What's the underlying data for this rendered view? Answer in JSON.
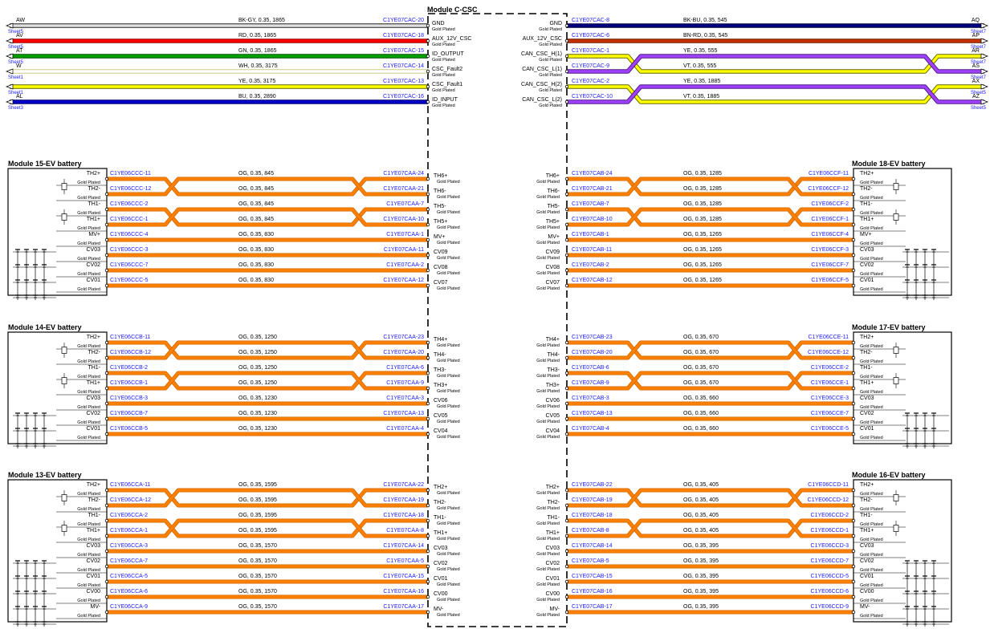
{
  "csc": {
    "title": "Module C-CSC",
    "left": [
      {
        "tag": "AW",
        "sheet": "Sheet5",
        "spec": "BK-GY,  0.35,  1865",
        "conn": "C1YE07CAC-20",
        "pin": "GND",
        "plate": "Gold Plated",
        "color": "#e0e0e0",
        "edge": "#222222"
      },
      {
        "tag": "AV",
        "sheet": "Sheet5",
        "spec": "RD,  0.35,  1865",
        "conn": "C1YE07CAC-18",
        "pin": "AUX_12V_CSC",
        "plate": "Gold Plated",
        "color": "#ff0000",
        "edge": "#990000"
      },
      {
        "tag": "AT",
        "sheet": "Sheet5",
        "spec": "GN,  0.35,  1865",
        "conn": "C1YE07CAC-15",
        "pin": "ID_OUTPUT",
        "plate": "Gold Plated",
        "color": "#00a000",
        "edge": "#005000"
      },
      {
        "tag": "W",
        "sheet": "Sheet1",
        "spec": "WH,  0.35,  3175",
        "conn": "C1YE07CAC-14",
        "pin": "CSC_Fault2",
        "plate": "Gold Plated",
        "color": "#ffffff",
        "edge": "#cccc88"
      },
      {
        "tag": "",
        "sheet": "Sheet1",
        "spec": "YE,  0.35,  3175",
        "conn": "C1YE07CAC-13",
        "pin": "CSC_Fault1",
        "plate": "Gold Plated",
        "color": "#ffff00",
        "edge": "#666600"
      },
      {
        "tag": "AL",
        "sheet": "Sheet3",
        "spec": "BU,  0.35,  2890",
        "conn": "C1YE07CAC-16",
        "pin": "ID_INPUT",
        "plate": "Gold Plated",
        "color": "#0000cc",
        "edge": "#000066"
      }
    ],
    "right": [
      {
        "tag": "AQ",
        "sheet": "Sheet7",
        "spec": "BK-BU,  0.35,  545",
        "conn": "C1YE07CAC-8",
        "pin": "GND",
        "plate": "Gold Plated",
        "color": "#000080",
        "edge": "#000040"
      },
      {
        "tag": "AP",
        "sheet": "Sheet7",
        "spec": "BN-RD,  0.35,  545",
        "conn": "C1YE07CAC-6",
        "pin": "AUX_12V_CSC",
        "plate": "Gold Plated",
        "color": "#c83200",
        "edge": "#6a1a00"
      },
      {
        "tag": "AR",
        "sheet": "Sheet7",
        "spec": "YE,  0.35,  555",
        "conn": "C1YE07CAC-1",
        "pin": "CAN_CSC_H(1)",
        "plate": "Gold Plated",
        "color": "#ffff00",
        "edge": "#666600"
      },
      {
        "tag": "AS",
        "sheet": "Sheet7",
        "spec": "VT,  0.35,  555",
        "conn": "C1YE07CAC-9",
        "pin": "CAN_CSC_L(1)",
        "plate": "Gold Plated",
        "color": "#a040ff",
        "edge": "#502080"
      },
      {
        "tag": "AX",
        "sheet": "Sheet5",
        "spec": "YE,  0.35,  1885",
        "conn": "C1YE07CAC-2",
        "pin": "CAN_CSC_H(2)",
        "plate": "Gold Plated",
        "color": "#ffff00",
        "edge": "#666600"
      },
      {
        "tag": "AZ",
        "sheet": "Sheet5",
        "spec": "VT,  0.35,  1885",
        "conn": "C1YE07CAC-10",
        "pin": "CAN_CSC_L(2)",
        "plate": "Gold Plated",
        "color": "#a040ff",
        "edge": "#502080"
      }
    ]
  },
  "modules": [
    {
      "title": "Module 15-EV battery",
      "side": "left",
      "rows": [
        {
          "m": "TH2+",
          "c": "TH6+",
          "mc": "C1YE06CCC-11",
          "cc": "C1YE07CAA-24",
          "spec": "OG,  0.35,  845",
          "plate": "Gold Plated"
        },
        {
          "m": "TH2-",
          "c": "TH6-",
          "mc": "C1YE06CCC-12",
          "cc": "C1YE07CAA-21",
          "spec": "OG,  0.35,  845",
          "plate": "Gold Plated"
        },
        {
          "m": "TH1-",
          "c": "TH5-",
          "mc": "C1YE06CCC-2",
          "cc": "C1YE07CAA-7",
          "spec": "OG,  0.35,  845",
          "plate": "Gold Plated"
        },
        {
          "m": "TH1+",
          "c": "TH5+",
          "mc": "C1YE06CCC-1",
          "cc": "C1YE07CAA-10",
          "spec": "OG,  0.35,  845",
          "plate": "Gold Plated"
        },
        {
          "m": "MV+",
          "c": "MV+",
          "mc": "C1YE06CCC-4",
          "cc": "C1YE07CAA-1",
          "spec": "OG,  0.35,  830",
          "plate": "Gold Plated"
        },
        {
          "m": "CV03",
          "c": "CV09",
          "mc": "C1YE06CCC-3",
          "cc": "C1YE07CAA-11",
          "spec": "OG,  0.35,  830",
          "plate": "Gold Plated"
        },
        {
          "m": "CV02",
          "c": "CV08",
          "mc": "C1YE06CCC-7",
          "cc": "C1YE07CAA-2",
          "spec": "OG,  0.35,  830",
          "plate": "Gold Plated"
        },
        {
          "m": "CV01",
          "c": "CV07",
          "mc": "C1YE06CCC-5",
          "cc": "C1YE07CAA-12",
          "spec": "OG,  0.35,  830",
          "plate": "Gold Plated"
        }
      ]
    },
    {
      "title": "Module 14-EV battery",
      "side": "left",
      "rows": [
        {
          "m": "TH2+",
          "c": "TH4+",
          "mc": "C1YE06CCB-11",
          "cc": "C1YE07CAA-23",
          "spec": "OG,  0.35,  1250",
          "plate": "Gold Plated"
        },
        {
          "m": "TH2-",
          "c": "TH4-",
          "mc": "C1YE06CCB-12",
          "cc": "C1YE07CAA-20",
          "spec": "OG,  0.35,  1250",
          "plate": "Gold Plated"
        },
        {
          "m": "TH1-",
          "c": "TH3-",
          "mc": "C1YE06CCB-2",
          "cc": "C1YE07CAA-6",
          "spec": "OG,  0.35,  1250",
          "plate": "Gold Plated"
        },
        {
          "m": "TH1+",
          "c": "TH3+",
          "mc": "C1YE06CCB-1",
          "cc": "C1YE07CAA-9",
          "spec": "OG,  0.35,  1250",
          "plate": "Gold Plated"
        },
        {
          "m": "CV03",
          "c": "CV06",
          "mc": "C1YE06CCB-3",
          "cc": "C1YE07CAA-3",
          "spec": "OG,  0.35,  1230",
          "plate": "Gold Plated"
        },
        {
          "m": "CV02",
          "c": "CV05",
          "mc": "C1YE06CCB-7",
          "cc": "C1YE07CAA-13",
          "spec": "OG,  0.35,  1230",
          "plate": "Gold Plated"
        },
        {
          "m": "CV01",
          "c": "CV04",
          "mc": "C1YE06CCB-5",
          "cc": "C1YE07CAA-4",
          "spec": "OG,  0.35,  1230",
          "plate": "Gold Plated"
        }
      ]
    },
    {
      "title": "Module 13-EV battery",
      "side": "left",
      "rows": [
        {
          "m": "TH2+",
          "c": "TH2+",
          "mc": "C1YE06CCA-11",
          "cc": "C1YE07CAA-22",
          "spec": "OG,  0.35,  1595",
          "plate": "Gold Plated"
        },
        {
          "m": "TH2-",
          "c": "TH2-",
          "mc": "C1YE06CCA-12",
          "cc": "C1YE07CAA-19",
          "spec": "OG,  0.35,  1595",
          "plate": "Gold Plated"
        },
        {
          "m": "TH1-",
          "c": "TH1-",
          "mc": "C1YE06CCA-2",
          "cc": "C1YE07CAA-18",
          "spec": "OG,  0.35,  1595",
          "plate": "Gold Plated"
        },
        {
          "m": "TH1+",
          "c": "TH1+",
          "mc": "C1YE06CCA-1",
          "cc": "C1YE07CAA-8",
          "spec": "OG,  0.35,  1595",
          "plate": "Gold Plated"
        },
        {
          "m": "CV03",
          "c": "CV03",
          "mc": "C1YE06CCA-3",
          "cc": "C1YE07CAA-14",
          "spec": "OG,  0.35,  1570",
          "plate": "Gold Plated"
        },
        {
          "m": "CV02",
          "c": "CV02",
          "mc": "C1YE06CCA-7",
          "cc": "C1YE07CAA-5",
          "spec": "OG,  0.35,  1570",
          "plate": "Gold Plated"
        },
        {
          "m": "CV01",
          "c": "CV01",
          "mc": "C1YE06CCA-5",
          "cc": "C1YE07CAA-15",
          "spec": "OG,  0.35,  1570",
          "plate": "Gold Plated"
        },
        {
          "m": "CV00",
          "c": "CV00",
          "mc": "C1YE06CCA-6",
          "cc": "C1YE07CAA-16",
          "spec": "OG,  0.35,  1570",
          "plate": "Gold Plated"
        },
        {
          "m": "MV-",
          "c": "MV-",
          "mc": "C1YE06CCA-9",
          "cc": "C1YE07CAA-17",
          "spec": "OG,  0.35,  1570",
          "plate": "Gold Plated"
        }
      ]
    },
    {
      "title": "Module 18-EV battery",
      "side": "right",
      "rows": [
        {
          "m": "TH2+",
          "c": "TH6+",
          "mc": "C1YE06CCF-11",
          "cc": "C1YE07CAB-24",
          "spec": "OG,  0.35,  1285",
          "plate": "Gold Plated"
        },
        {
          "m": "TH2-",
          "c": "TH6-",
          "mc": "C1YE06CCF-12",
          "cc": "C1YE07CAB-21",
          "spec": "OG,  0.35,  1285",
          "plate": "Gold Plated"
        },
        {
          "m": "TH1-",
          "c": "TH5-",
          "mc": "C1YE06CCF-2",
          "cc": "C1YE07CAB-7",
          "spec": "OG,  0.35,  1285",
          "plate": "Gold Plated"
        },
        {
          "m": "TH1+",
          "c": "TH5+",
          "mc": "C1YE06CCF-1",
          "cc": "C1YE07CAB-10",
          "spec": "OG,  0.35,  1285",
          "plate": "Gold Plated"
        },
        {
          "m": "MV+",
          "c": "MV+",
          "mc": "C1YE06CCF-4",
          "cc": "C1YE07CAB-1",
          "spec": "OG,  0.35,  1265",
          "plate": "Gold Plated"
        },
        {
          "m": "CV03",
          "c": "CV09",
          "mc": "C1YE06CCF-3",
          "cc": "C1YE07CAB-11",
          "spec": "OG,  0.35,  1265",
          "plate": "Gold Plated"
        },
        {
          "m": "CV02",
          "c": "CV08",
          "mc": "C1YE06CCF-7",
          "cc": "C1YE07CAB-2",
          "spec": "OG,  0.35,  1265",
          "plate": "Gold Plated"
        },
        {
          "m": "CV01",
          "c": "CV07",
          "mc": "C1YE06CCF-5",
          "cc": "C1YE07CAB-12",
          "spec": "OG,  0.35,  1265",
          "plate": "Gold Plated"
        }
      ]
    },
    {
      "title": "Module 17-EV battery",
      "side": "right",
      "rows": [
        {
          "m": "TH2+",
          "c": "TH4+",
          "mc": "C1YE06CCE-11",
          "cc": "C1YE07CAB-23",
          "spec": "OG,  0.35,  670",
          "plate": "Gold Plated"
        },
        {
          "m": "TH2-",
          "c": "TH4-",
          "mc": "C1YE06CCE-12",
          "cc": "C1YE07CAB-20",
          "spec": "OG,  0.35,  670",
          "plate": "Gold Plated"
        },
        {
          "m": "TH1-",
          "c": "TH3-",
          "mc": "C1YE06CCE-2",
          "cc": "C1YE07CAB-6",
          "spec": "OG,  0.35,  670",
          "plate": "Gold Plated"
        },
        {
          "m": "TH1+",
          "c": "TH3+",
          "mc": "C1YE06CCE-1",
          "cc": "C1YE07CAB-9",
          "spec": "OG,  0.35,  670",
          "plate": "Gold Plated"
        },
        {
          "m": "CV03",
          "c": "CV06",
          "mc": "C1YE06CCE-3",
          "cc": "C1YE07CAB-3",
          "spec": "OG,  0.35,  660",
          "plate": "Gold Plated"
        },
        {
          "m": "CV02",
          "c": "CV05",
          "mc": "C1YE06CCE-7",
          "cc": "C1YE07CAB-13",
          "spec": "OG,  0.35,  660",
          "plate": "Gold Plated"
        },
        {
          "m": "CV01",
          "c": "CV04",
          "mc": "C1YE06CCE-5",
          "cc": "C1YE07CAB-4",
          "spec": "OG,  0.35,  660",
          "plate": "Gold Plated"
        }
      ]
    },
    {
      "title": "Module 16-EV battery",
      "side": "right",
      "rows": [
        {
          "m": "TH2+",
          "c": "TH2+",
          "mc": "C1YE06CCD-11",
          "cc": "C1YE07CAB-22",
          "spec": "OG,  0.35,  405",
          "plate": "Gold Plated"
        },
        {
          "m": "TH2-",
          "c": "TH2-",
          "mc": "C1YE06CCD-12",
          "cc": "C1YE07CAB-19",
          "spec": "OG,  0.35,  405",
          "plate": "Gold Plated"
        },
        {
          "m": "TH1-",
          "c": "TH1-",
          "mc": "C1YE06CCD-2",
          "cc": "C1YE07CAB-18",
          "spec": "OG,  0.35,  405",
          "plate": "Gold Plated"
        },
        {
          "m": "TH1+",
          "c": "TH1+",
          "mc": "C1YE06CCD-1",
          "cc": "C1YE07CAB-8",
          "spec": "OG,  0.35,  405",
          "plate": "Gold Plated"
        },
        {
          "m": "CV03",
          "c": "CV03",
          "mc": "C1YE06CCD-3",
          "cc": "C1YE07CAB-14",
          "spec": "OG,  0.35,  395",
          "plate": "Gold Plated"
        },
        {
          "m": "CV02",
          "c": "CV02",
          "mc": "C1YE06CCD-7",
          "cc": "C1YE07CAB-5",
          "spec": "OG,  0.35,  395",
          "plate": "Gold Plated"
        },
        {
          "m": "CV01",
          "c": "CV01",
          "mc": "C1YE06CCD-5",
          "cc": "C1YE07CAB-15",
          "spec": "OG,  0.35,  395",
          "plate": "Gold Plated"
        },
        {
          "m": "CV00",
          "c": "CV00",
          "mc": "C1YE06CCD-6",
          "cc": "C1YE07CAB-16",
          "spec": "OG,  0.35,  395",
          "plate": "Gold Plated"
        },
        {
          "m": "MV-",
          "c": "MV-",
          "mc": "C1YE06CCD-9",
          "cc": "C1YE07CAB-17",
          "spec": "OG,  0.35,  395",
          "plate": "Gold Plated"
        }
      ]
    }
  ]
}
